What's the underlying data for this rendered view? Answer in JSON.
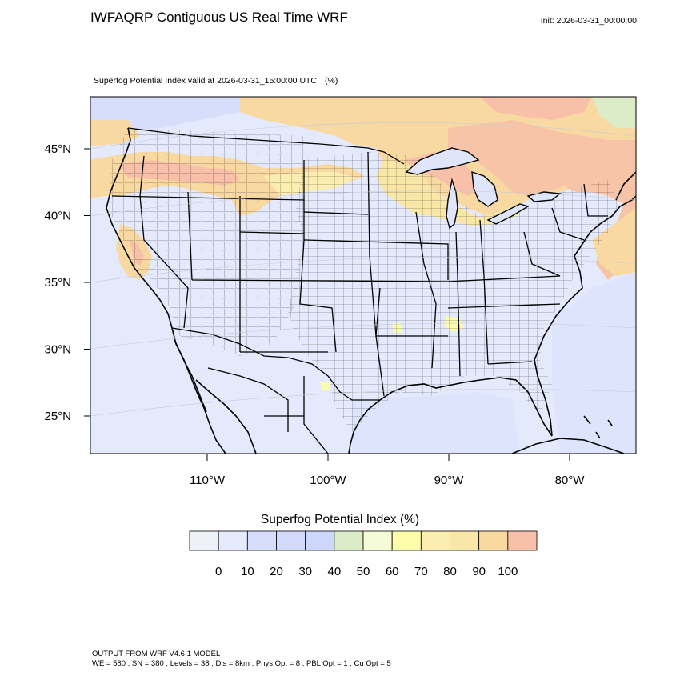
{
  "header": {
    "title": "IWFAQRP Contiguous US Real Time WRF",
    "init": "Init: 2026-03-31_00:00:00"
  },
  "map": {
    "subtitle": "Superfog Potential Index valid at 2026-03-31_15:00:00 UTC",
    "subtitle_unit": "(%)",
    "lat_labels": [
      "45°N",
      "40°N",
      "35°N",
      "30°N",
      "25°N"
    ],
    "lon_labels": [
      "110°W",
      "100°W",
      "90°W",
      "80°W"
    ],
    "lat_values": [
      45,
      40,
      35,
      30,
      25
    ],
    "lon_values": [
      -110,
      -100,
      -90,
      -80
    ]
  },
  "legend": {
    "title": "Superfog Potential Index  (%)",
    "colors": [
      "#eef2f8",
      "#e5eafc",
      "#d6defb",
      "#d2dafb",
      "#cdd6fb",
      "#dcebc8",
      "#f4fbd6",
      "#fcfcaa",
      "#fbeeb0",
      "#f9e7a7",
      "#f8d9a0",
      "#f8c0a8"
    ],
    "labels": [
      "0",
      "10",
      "20",
      "30",
      "40",
      "50",
      "60",
      "70",
      "80",
      "90",
      "100"
    ]
  },
  "footer": {
    "line1": "OUTPUT FROM WRF V4.6.1 MODEL",
    "line2": "WE = 580 ; SN = 380 ; Levels = 38 ; Dis = 8km ; Phys Opt = 8 ; PBL Opt = 1 ; Cu Opt = 5"
  }
}
